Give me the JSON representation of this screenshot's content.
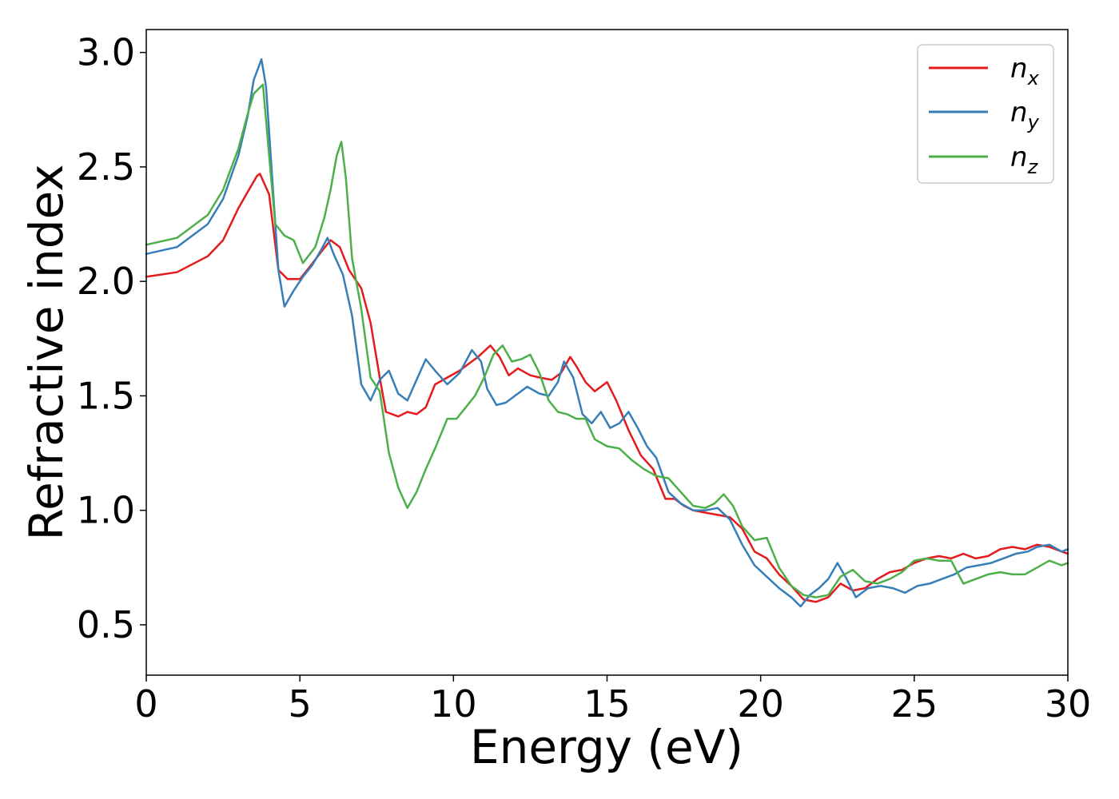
{
  "chart_data": {
    "type": "line",
    "xlabel": "Energy (eV)",
    "ylabel": "Refractive index",
    "xlim": [
      0,
      30
    ],
    "ylim": [
      0.28,
      3.1
    ],
    "xticks": [
      0,
      5,
      10,
      15,
      20,
      25,
      30
    ],
    "xtick_labels": [
      "0",
      "5",
      "10",
      "15",
      "20",
      "25",
      "30"
    ],
    "yticks": [
      0.5,
      1.0,
      1.5,
      2.0,
      2.5,
      3.0
    ],
    "ytick_labels": [
      "0.5",
      "1.0",
      "1.5",
      "2.0",
      "2.5",
      "3.0"
    ],
    "grid": false,
    "legend_position": "top-right",
    "series": [
      {
        "name": "n_x",
        "legend_main": "n",
        "legend_sub": "x",
        "color": "#e41a1c",
        "x": [
          0,
          1,
          2,
          2.5,
          3,
          3.3,
          3.6,
          3.7,
          4.0,
          4.3,
          4.6,
          5.0,
          5.3,
          5.7,
          6.0,
          6.3,
          6.6,
          7.0,
          7.3,
          7.6,
          7.8,
          8.2,
          8.5,
          8.8,
          9.1,
          9.4,
          9.8,
          10.2,
          10.5,
          10.8,
          11.2,
          11.5,
          11.8,
          12.1,
          12.5,
          12.8,
          13.2,
          13.5,
          13.8,
          14.0,
          14.3,
          14.6,
          15.0,
          15.3,
          15.7,
          16.1,
          16.5,
          16.9,
          17.2,
          17.5,
          17.8,
          18.2,
          18.6,
          19.0,
          19.4,
          19.8,
          20.2,
          20.6,
          21.0,
          21.4,
          21.8,
          22.2,
          22.6,
          23.0,
          23.4,
          23.8,
          24.2,
          24.6,
          25.0,
          25.4,
          25.8,
          26.2,
          26.6,
          27.0,
          27.4,
          27.8,
          28.2,
          28.6,
          29.0,
          29.4,
          29.8,
          30.0
        ],
        "y": [
          2.02,
          2.04,
          2.11,
          2.18,
          2.32,
          2.39,
          2.46,
          2.47,
          2.38,
          2.05,
          2.01,
          2.01,
          2.06,
          2.13,
          2.18,
          2.15,
          2.05,
          1.97,
          1.82,
          1.58,
          1.43,
          1.41,
          1.43,
          1.42,
          1.45,
          1.55,
          1.58,
          1.61,
          1.64,
          1.67,
          1.72,
          1.67,
          1.59,
          1.62,
          1.59,
          1.58,
          1.57,
          1.6,
          1.67,
          1.63,
          1.56,
          1.52,
          1.56,
          1.48,
          1.35,
          1.24,
          1.18,
          1.05,
          1.05,
          1.02,
          1.0,
          0.99,
          0.98,
          0.97,
          0.92,
          0.82,
          0.79,
          0.72,
          0.67,
          0.61,
          0.6,
          0.62,
          0.68,
          0.65,
          0.66,
          0.7,
          0.73,
          0.74,
          0.77,
          0.79,
          0.8,
          0.79,
          0.81,
          0.79,
          0.8,
          0.83,
          0.84,
          0.83,
          0.85,
          0.84,
          0.82,
          0.81
        ]
      },
      {
        "name": "n_y",
        "legend_main": "n",
        "legend_sub": "y",
        "color": "#377eb8",
        "x": [
          0,
          1,
          2,
          2.5,
          3,
          3.3,
          3.5,
          3.75,
          3.9,
          4.1,
          4.3,
          4.5,
          4.8,
          5.1,
          5.4,
          5.7,
          5.9,
          6.1,
          6.4,
          6.7,
          7.0,
          7.3,
          7.6,
          7.9,
          8.2,
          8.5,
          8.8,
          9.1,
          9.4,
          9.8,
          10.2,
          10.6,
          10.9,
          11.1,
          11.4,
          11.7,
          12.0,
          12.4,
          12.8,
          13.1,
          13.4,
          13.6,
          13.9,
          14.2,
          14.5,
          14.8,
          15.1,
          15.4,
          15.7,
          16.0,
          16.3,
          16.6,
          17.0,
          17.4,
          17.8,
          18.2,
          18.6,
          19.0,
          19.4,
          19.8,
          20.2,
          20.6,
          21.0,
          21.3,
          21.6,
          21.9,
          22.2,
          22.5,
          22.8,
          23.1,
          23.5,
          23.9,
          24.3,
          24.7,
          25.1,
          25.5,
          25.9,
          26.3,
          26.7,
          27.1,
          27.5,
          27.9,
          28.3,
          28.7,
          29.0,
          29.4,
          29.8,
          30.0
        ],
        "y": [
          2.12,
          2.15,
          2.25,
          2.36,
          2.55,
          2.72,
          2.88,
          2.97,
          2.85,
          2.45,
          2.05,
          1.89,
          1.96,
          2.02,
          2.07,
          2.14,
          2.19,
          2.12,
          2.03,
          1.85,
          1.55,
          1.48,
          1.57,
          1.61,
          1.51,
          1.48,
          1.57,
          1.66,
          1.61,
          1.55,
          1.6,
          1.7,
          1.65,
          1.53,
          1.46,
          1.47,
          1.5,
          1.54,
          1.51,
          1.5,
          1.56,
          1.65,
          1.58,
          1.42,
          1.38,
          1.43,
          1.36,
          1.38,
          1.43,
          1.36,
          1.28,
          1.23,
          1.08,
          1.03,
          1.0,
          1.0,
          1.01,
          0.96,
          0.85,
          0.76,
          0.71,
          0.66,
          0.62,
          0.58,
          0.63,
          0.66,
          0.7,
          0.77,
          0.7,
          0.62,
          0.66,
          0.67,
          0.66,
          0.64,
          0.67,
          0.68,
          0.7,
          0.72,
          0.75,
          0.76,
          0.77,
          0.79,
          0.81,
          0.82,
          0.84,
          0.85,
          0.82,
          0.83
        ]
      },
      {
        "name": "n_z",
        "legend_main": "n",
        "legend_sub": "z",
        "color": "#4daf4a",
        "x": [
          0,
          1,
          2,
          2.5,
          3,
          3.3,
          3.5,
          3.8,
          4.0,
          4.2,
          4.5,
          4.8,
          5.1,
          5.5,
          5.8,
          6.0,
          6.2,
          6.35,
          6.5,
          6.7,
          7.0,
          7.3,
          7.6,
          7.9,
          8.2,
          8.5,
          8.8,
          9.1,
          9.4,
          9.8,
          10.1,
          10.4,
          10.7,
          11.0,
          11.3,
          11.6,
          11.9,
          12.2,
          12.5,
          12.8,
          13.1,
          13.4,
          13.7,
          14.0,
          14.3,
          14.6,
          15.0,
          15.4,
          15.8,
          16.2,
          16.6,
          17.0,
          17.4,
          17.8,
          18.2,
          18.5,
          18.8,
          19.1,
          19.4,
          19.8,
          20.2,
          20.6,
          21.0,
          21.4,
          21.8,
          22.2,
          22.6,
          23.0,
          23.4,
          23.8,
          24.2,
          24.6,
          25.0,
          25.4,
          25.8,
          26.2,
          26.6,
          27.0,
          27.4,
          27.8,
          28.2,
          28.6,
          29.0,
          29.4,
          29.8,
          30.0
        ],
        "y": [
          2.16,
          2.19,
          2.29,
          2.4,
          2.58,
          2.73,
          2.82,
          2.86,
          2.55,
          2.25,
          2.2,
          2.18,
          2.08,
          2.15,
          2.28,
          2.4,
          2.55,
          2.61,
          2.45,
          2.1,
          1.88,
          1.58,
          1.52,
          1.25,
          1.1,
          1.01,
          1.08,
          1.18,
          1.27,
          1.4,
          1.4,
          1.45,
          1.5,
          1.58,
          1.68,
          1.72,
          1.65,
          1.66,
          1.68,
          1.6,
          1.48,
          1.43,
          1.42,
          1.4,
          1.4,
          1.31,
          1.28,
          1.27,
          1.22,
          1.18,
          1.15,
          1.14,
          1.08,
          1.02,
          1.01,
          1.03,
          1.07,
          1.02,
          0.93,
          0.87,
          0.88,
          0.75,
          0.67,
          0.63,
          0.62,
          0.63,
          0.71,
          0.74,
          0.69,
          0.68,
          0.7,
          0.73,
          0.78,
          0.79,
          0.78,
          0.78,
          0.68,
          0.7,
          0.72,
          0.73,
          0.72,
          0.72,
          0.75,
          0.78,
          0.76,
          0.77
        ]
      }
    ]
  }
}
